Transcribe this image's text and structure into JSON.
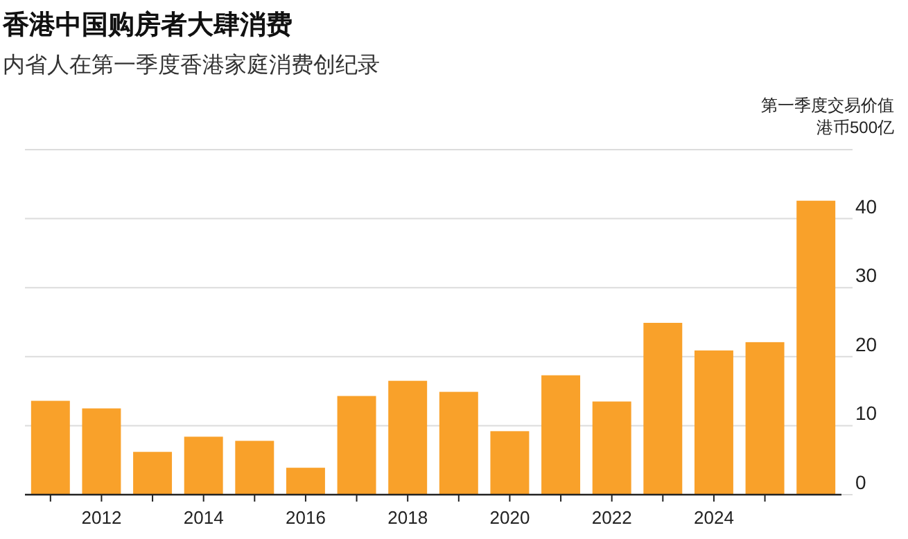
{
  "chart_data": {
    "type": "bar",
    "title": "香港中国购房者大肆消费",
    "subtitle": "内省人在第一季度香港家庭消费创纪录",
    "ylabel": "第一季度交易价值",
    "annotations": [
      "港币500亿"
    ],
    "x": [
      2011,
      2012,
      2013,
      2014,
      2015,
      2016,
      2017,
      2018,
      2019,
      2020,
      2021,
      2022,
      2023,
      2024,
      2025,
      2026
    ],
    "values": [
      13.6,
      12.5,
      6.2,
      8.4,
      7.8,
      3.9,
      14.3,
      16.5,
      14.9,
      9.2,
      17.3,
      13.5,
      24.9,
      20.9,
      22.1,
      42.6
    ],
    "color": "#f9a12a",
    "xlim": [
      2010.5,
      2026.5
    ],
    "xticks": [
      {
        "value": 2011,
        "label": null
      },
      2012,
      {
        "value": 2013,
        "label": null
      },
      2014,
      {
        "value": 2015,
        "label": null
      },
      2016,
      {
        "value": 2017,
        "label": null
      },
      2018,
      {
        "value": 2019,
        "label": null
      },
      2020,
      {
        "value": 2021,
        "label": null
      },
      2022,
      {
        "value": 2023,
        "label": null
      },
      2024,
      {
        "value": 2025,
        "label": null
      }
    ],
    "ylim": [
      0,
      50
    ],
    "yticks": [
      0,
      10,
      20,
      30,
      40,
      {
        "value": 50,
        "label": null
      }
    ],
    "grid": "y"
  }
}
